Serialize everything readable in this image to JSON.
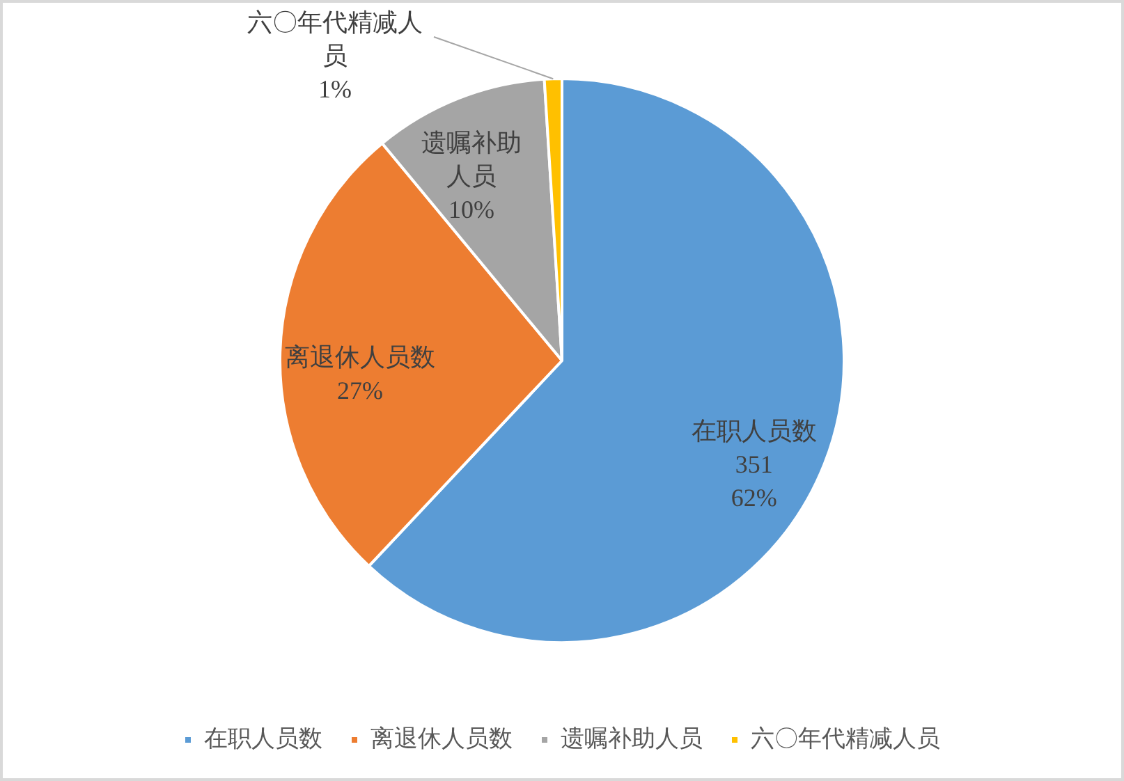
{
  "chart_data": {
    "type": "pie",
    "categories": [
      "在职人员数",
      "离退休人员数",
      "遗嘱补助人员",
      "六〇年代精减人员"
    ],
    "values": [
      62,
      27,
      10,
      1
    ],
    "colors": [
      "#5b9bd5",
      "#ed7d31",
      "#a5a5a5",
      "#ffc000"
    ],
    "value_labels": [
      "351\n62%",
      "27%",
      "10%",
      "1%"
    ],
    "legend": "bottom"
  }
}
